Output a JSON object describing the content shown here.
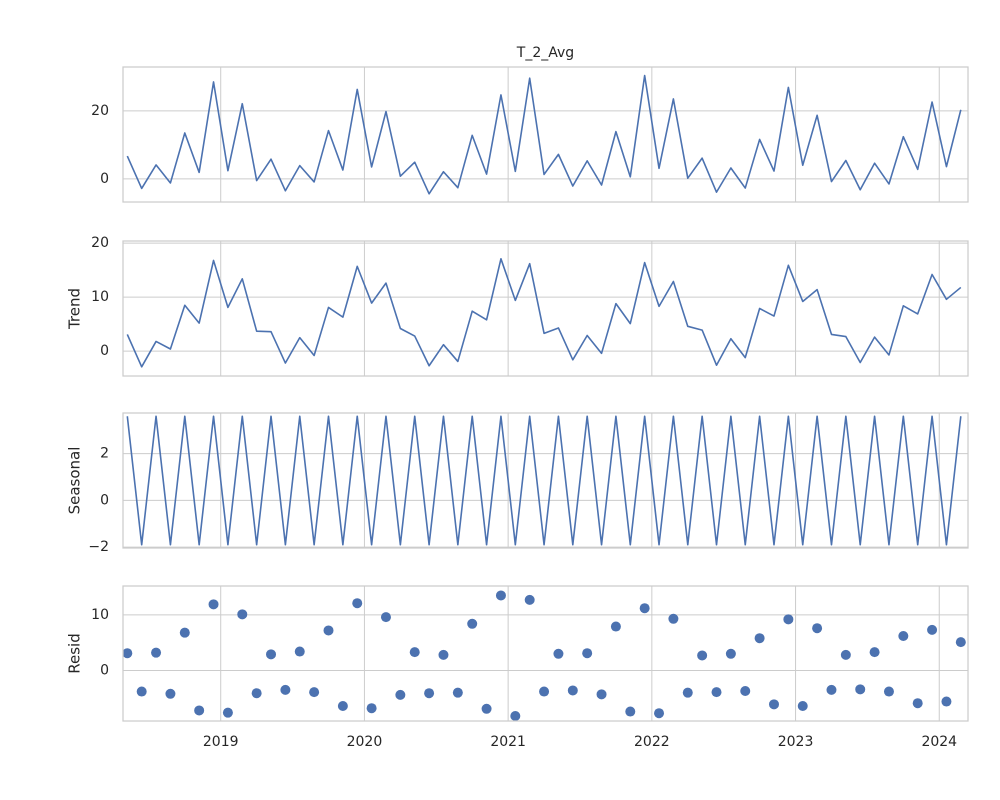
{
  "chart_data": [
    {
      "type": "line",
      "title": "T_2_Avg",
      "x": [
        2018.35,
        2018.45,
        2018.55,
        2018.65,
        2018.75,
        2018.85,
        2018.95,
        2019.05,
        2019.15,
        2019.25,
        2019.35,
        2019.45,
        2019.55,
        2019.65,
        2019.75,
        2019.85,
        2019.95,
        2020.05,
        2020.15,
        2020.25,
        2020.35,
        2020.45,
        2020.55,
        2020.65,
        2020.75,
        2020.85,
        2020.95,
        2021.05,
        2021.15,
        2021.25,
        2021.35,
        2021.45,
        2021.55,
        2021.65,
        2021.75,
        2021.85,
        2021.95,
        2022.05,
        2022.15,
        2022.25,
        2022.35,
        2022.45,
        2022.55,
        2022.65,
        2022.75,
        2022.85,
        2022.95,
        2023.05,
        2023.15,
        2023.25,
        2023.35,
        2023.45,
        2023.55,
        2023.65,
        2023.75,
        2023.85,
        2023.95,
        2024.05,
        2024.15
      ],
      "series": [
        {
          "color": "#4c72b0",
          "values": [
            6.7,
            -2.8,
            4.1,
            -1.2,
            13.5,
            1.9,
            28.5,
            2.4,
            22.1,
            -0.5,
            5.8,
            -3.5,
            3.9,
            -0.9,
            14.2,
            2.6,
            26.3,
            3.5,
            19.8,
            0.8,
            4.9,
            -4.4,
            2.1,
            -2.6,
            12.8,
            1.4,
            24.7,
            2.2,
            29.6,
            1.3,
            7.2,
            -2.1,
            5.3,
            -1.8,
            13.9,
            0.6,
            30.4,
            3.1,
            23.5,
            0.2,
            6.1,
            -3.9,
            3.2,
            -2.7,
            11.6,
            2.3,
            26.9,
            4.0,
            18.7,
            -0.8,
            5.4,
            -3.2,
            4.6,
            -1.5,
            12.4,
            2.8,
            22.6,
            3.6,
            20.3
          ]
        }
      ],
      "xlim": [
        2018.32,
        2024.2
      ],
      "xticks": [
        2019,
        2020,
        2021,
        2022,
        2023,
        2024
      ],
      "ylim": [
        -6.8,
        32.9
      ],
      "yticks": [
        0,
        20
      ],
      "grid": true
    },
    {
      "type": "line",
      "ylabel": "Trend",
      "x": [
        2018.35,
        2018.45,
        2018.55,
        2018.65,
        2018.75,
        2018.85,
        2018.95,
        2019.05,
        2019.15,
        2019.25,
        2019.35,
        2019.45,
        2019.55,
        2019.65,
        2019.75,
        2019.85,
        2019.95,
        2020.05,
        2020.15,
        2020.25,
        2020.35,
        2020.45,
        2020.55,
        2020.65,
        2020.75,
        2020.85,
        2020.95,
        2021.05,
        2021.15,
        2021.25,
        2021.35,
        2021.45,
        2021.55,
        2021.65,
        2021.75,
        2021.85,
        2021.95,
        2022.05,
        2022.15,
        2022.25,
        2022.35,
        2022.45,
        2022.55,
        2022.65,
        2022.75,
        2022.85,
        2022.95,
        2023.05,
        2023.15,
        2023.25,
        2023.35,
        2023.45,
        2023.55,
        2023.65,
        2023.75,
        2023.85,
        2023.95,
        2024.05,
        2024.15
      ],
      "series": [
        {
          "color": "#4c72b0",
          "values": [
            3.1,
            -2.9,
            1.8,
            0.4,
            8.5,
            5.2,
            16.8,
            8.1,
            13.4,
            3.7,
            3.6,
            -2.2,
            2.5,
            -0.8,
            8.1,
            6.3,
            15.7,
            8.9,
            12.6,
            4.2,
            2.8,
            -2.7,
            1.2,
            -1.9,
            7.4,
            5.8,
            17.1,
            9.4,
            16.2,
            3.3,
            4.3,
            -1.6,
            2.9,
            -0.4,
            8.8,
            5.1,
            16.4,
            8.3,
            12.9,
            4.6,
            3.9,
            -2.6,
            2.3,
            -1.2,
            7.9,
            6.5,
            15.9,
            9.2,
            11.4,
            3.1,
            2.7,
            -2.1,
            2.6,
            -0.7,
            8.4,
            6.9,
            14.2,
            9.6,
            11.8
          ]
        }
      ],
      "xlim": [
        2018.32,
        2024.2
      ],
      "xticks": [
        2019,
        2020,
        2021,
        2022,
        2023,
        2024
      ],
      "ylim": [
        -4.6,
        20.4
      ],
      "yticks": [
        0,
        10,
        20
      ],
      "grid": true
    },
    {
      "type": "line",
      "ylabel": "Seasonal",
      "x": [
        2018.35,
        2018.45,
        2018.55,
        2018.65,
        2018.75,
        2018.85,
        2018.95,
        2019.05,
        2019.15,
        2019.25,
        2019.35,
        2019.45,
        2019.55,
        2019.65,
        2019.75,
        2019.85,
        2019.95,
        2020.05,
        2020.15,
        2020.25,
        2020.35,
        2020.45,
        2020.55,
        2020.65,
        2020.75,
        2020.85,
        2020.95,
        2021.05,
        2021.15,
        2021.25,
        2021.35,
        2021.45,
        2021.55,
        2021.65,
        2021.75,
        2021.85,
        2021.95,
        2022.05,
        2022.15,
        2022.25,
        2022.35,
        2022.45,
        2022.55,
        2022.65,
        2022.75,
        2022.85,
        2022.95,
        2023.05,
        2023.15,
        2023.25,
        2023.35,
        2023.45,
        2023.55,
        2023.65,
        2023.75,
        2023.85,
        2023.95,
        2024.05,
        2024.15
      ],
      "series": [
        {
          "color": "#4c72b0",
          "values": [
            3.6,
            -1.9,
            3.6,
            -1.9,
            3.6,
            -1.9,
            3.6,
            -1.9,
            3.6,
            -1.9,
            3.6,
            -1.9,
            3.6,
            -1.9,
            3.6,
            -1.9,
            3.6,
            -1.9,
            3.6,
            -1.9,
            3.6,
            -1.9,
            3.6,
            -1.9,
            3.6,
            -1.9,
            3.6,
            -1.9,
            3.6,
            -1.9,
            3.6,
            -1.9,
            3.6,
            -1.9,
            3.6,
            -1.9,
            3.6,
            -1.9,
            3.6,
            -1.9,
            3.6,
            -1.9,
            3.6,
            -1.9,
            3.6,
            -1.9,
            3.6,
            -1.9,
            3.6,
            -1.9,
            3.6,
            -1.9,
            3.6,
            -1.9,
            3.6,
            -1.9,
            3.6,
            -1.9,
            3.6
          ]
        }
      ],
      "xlim": [
        2018.32,
        2024.2
      ],
      "xticks": [
        2019,
        2020,
        2021,
        2022,
        2023,
        2024
      ],
      "ylim": [
        -2.04,
        3.74
      ],
      "yticks": [
        {
          "value": -2,
          "label": "−2"
        },
        0,
        2
      ],
      "grid": true
    },
    {
      "type": "scatter",
      "ylabel": "Resid",
      "x": [
        2018.35,
        2018.45,
        2018.55,
        2018.65,
        2018.75,
        2018.85,
        2018.95,
        2019.05,
        2019.15,
        2019.25,
        2019.35,
        2019.45,
        2019.55,
        2019.65,
        2019.75,
        2019.85,
        2019.95,
        2020.05,
        2020.15,
        2020.25,
        2020.35,
        2020.45,
        2020.55,
        2020.65,
        2020.75,
        2020.85,
        2020.95,
        2021.05,
        2021.15,
        2021.25,
        2021.35,
        2021.45,
        2021.55,
        2021.65,
        2021.75,
        2021.85,
        2021.95,
        2022.05,
        2022.15,
        2022.25,
        2022.35,
        2022.45,
        2022.55,
        2022.65,
        2022.75,
        2022.85,
        2022.95,
        2023.05,
        2023.15,
        2023.25,
        2023.35,
        2023.45,
        2023.55,
        2023.65,
        2023.75,
        2023.85,
        2023.95,
        2024.05,
        2024.15
      ],
      "series": [
        {
          "color": "#4c72b0",
          "values": [
            3.1,
            -3.8,
            3.2,
            -4.2,
            6.8,
            -7.2,
            11.9,
            -7.6,
            10.1,
            -4.1,
            2.9,
            -3.5,
            3.4,
            -3.9,
            7.2,
            -6.4,
            12.1,
            -6.8,
            9.6,
            -4.4,
            3.3,
            -4.1,
            2.8,
            -4.0,
            8.4,
            -6.9,
            13.5,
            -8.2,
            12.7,
            -3.8,
            3.0,
            -3.6,
            3.1,
            -4.3,
            7.9,
            -7.4,
            11.2,
            -7.7,
            9.3,
            -4.0,
            2.7,
            -3.9,
            3.0,
            -3.7,
            5.8,
            -6.1,
            9.2,
            -6.4,
            7.6,
            -3.5,
            2.8,
            -3.4,
            3.3,
            -3.8,
            6.2,
            -5.9,
            7.3,
            -5.6,
            5.1
          ]
        }
      ],
      "xlim": [
        2018.32,
        2024.2
      ],
      "xticks": [
        2019,
        2020,
        2021,
        2022,
        2023,
        2024
      ],
      "ylim": [
        -9.1,
        15.2
      ],
      "yticks": [
        0,
        10
      ],
      "grid": true
    }
  ]
}
